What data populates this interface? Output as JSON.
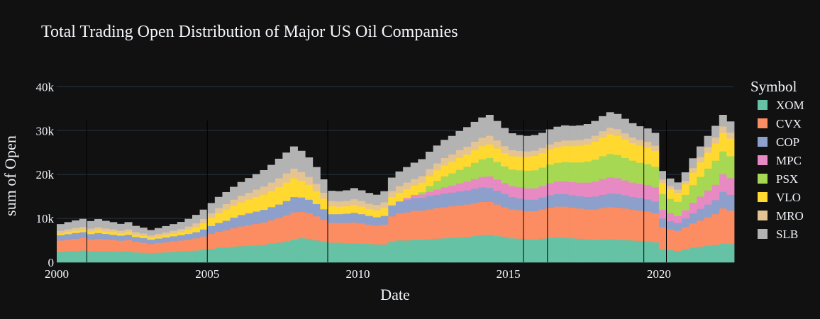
{
  "chart_data": {
    "type": "bar",
    "stacked": true,
    "title": "Total Trading Open Distribution of Major US Oil Companies",
    "xlabel": "Date",
    "ylabel": "sum of Open",
    "legend_title": "Symbol",
    "legend_position": "right",
    "grid": true,
    "xlim": [
      2000.0,
      2022.5
    ],
    "ylim": [
      0,
      42000
    ],
    "x_ticks": [
      2000,
      2005,
      2010,
      2015,
      2020
    ],
    "x_tick_labels": [
      "2000",
      "2005",
      "2010",
      "2015",
      "2020"
    ],
    "y_ticks": [
      0,
      10000,
      20000,
      30000,
      40000
    ],
    "y_tick_labels": [
      "0",
      "10k",
      "20k",
      "30k",
      "40k"
    ],
    "vertical_markers": [
      2001.0,
      2005.0,
      2009.0,
      2015.5,
      2016.3,
      2019.5,
      2020.25
    ],
    "x": [
      2000.125,
      2000.375,
      2000.625,
      2000.875,
      2001.125,
      2001.375,
      2001.625,
      2001.875,
      2002.125,
      2002.375,
      2002.625,
      2002.875,
      2003.125,
      2003.375,
      2003.625,
      2003.875,
      2004.125,
      2004.375,
      2004.625,
      2004.875,
      2005.125,
      2005.375,
      2005.625,
      2005.875,
      2006.125,
      2006.375,
      2006.625,
      2006.875,
      2007.125,
      2007.375,
      2007.625,
      2007.875,
      2008.125,
      2008.375,
      2008.625,
      2008.875,
      2009.125,
      2009.375,
      2009.625,
      2009.875,
      2010.125,
      2010.375,
      2010.625,
      2010.875,
      2011.125,
      2011.375,
      2011.625,
      2011.875,
      2012.125,
      2012.375,
      2012.625,
      2012.875,
      2013.125,
      2013.375,
      2013.625,
      2013.875,
      2014.125,
      2014.375,
      2014.625,
      2014.875,
      2015.125,
      2015.375,
      2015.625,
      2015.875,
      2016.125,
      2016.375,
      2016.625,
      2016.875,
      2017.125,
      2017.375,
      2017.625,
      2017.875,
      2018.125,
      2018.375,
      2018.625,
      2018.875,
      2019.125,
      2019.375,
      2019.625,
      2019.875,
      2020.125,
      2020.375,
      2020.625,
      2020.875,
      2021.125,
      2021.375,
      2021.625,
      2021.875,
      2022.125,
      2022.375
    ],
    "series": [
      {
        "name": "XOM",
        "color": "#66c2a5",
        "values": [
          2400,
          2500,
          2600,
          2700,
          2500,
          2600,
          2550,
          2500,
          2450,
          2500,
          2300,
          2200,
          2100,
          2200,
          2300,
          2400,
          2500,
          2600,
          2700,
          2900,
          3100,
          3300,
          3400,
          3600,
          3700,
          3800,
          3900,
          4000,
          4300,
          4500,
          4800,
          5200,
          5500,
          5400,
          5000,
          4700,
          4500,
          4500,
          4400,
          4300,
          4300,
          4200,
          4100,
          4100,
          4700,
          5000,
          5000,
          5200,
          5200,
          5300,
          5400,
          5500,
          5600,
          5700,
          5800,
          6000,
          6200,
          6300,
          6000,
          5800,
          5500,
          5400,
          5300,
          5200,
          5400,
          5600,
          5700,
          5600,
          5500,
          5400,
          5300,
          5200,
          5200,
          5300,
          5200,
          5100,
          5000,
          4900,
          4800,
          4600,
          3000,
          2800,
          2600,
          3000,
          3400,
          3600,
          3800,
          4000,
          4300,
          4200
        ]
      },
      {
        "name": "CVX",
        "color": "#fc8d62",
        "values": [
          2600,
          2700,
          2800,
          2900,
          2700,
          2800,
          2700,
          2600,
          2500,
          2600,
          2400,
          2300,
          2100,
          2200,
          2300,
          2400,
          2500,
          2600,
          2800,
          3000,
          3400,
          3700,
          3900,
          4200,
          4500,
          4700,
          4900,
          5100,
          5300,
          5600,
          5900,
          6200,
          6000,
          5800,
          5500,
          5000,
          4500,
          4500,
          4600,
          4800,
          4600,
          4400,
          4300,
          4500,
          5800,
          6200,
          6400,
          6600,
          6600,
          6800,
          7000,
          7100,
          7200,
          7300,
          7400,
          7500,
          7600,
          7500,
          7200,
          6800,
          6600,
          6500,
          6400,
          6500,
          6700,
          6900,
          7000,
          7100,
          7000,
          6900,
          6800,
          6900,
          7200,
          7300,
          7300,
          7200,
          7000,
          6900,
          6800,
          6600,
          5000,
          4700,
          4600,
          5000,
          5500,
          6000,
          6500,
          7000,
          8000,
          7600
        ]
      },
      {
        "name": "COP",
        "color": "#8da0cb",
        "values": [
          1200,
          1250,
          1300,
          1300,
          1250,
          1300,
          1250,
          1200,
          1150,
          1200,
          1100,
          1050,
          1000,
          1050,
          1100,
          1150,
          1200,
          1300,
          1400,
          1600,
          1800,
          2000,
          2200,
          2400,
          2600,
          2700,
          2800,
          2900,
          3000,
          3100,
          3300,
          3500,
          3300,
          3100,
          2800,
          2400,
          2000,
          2000,
          2100,
          2200,
          2100,
          2000,
          1900,
          2000,
          2500,
          2700,
          2800,
          2900,
          2900,
          3000,
          3000,
          3100,
          3100,
          3200,
          3200,
          3300,
          3300,
          3200,
          3100,
          3000,
          2800,
          2700,
          2600,
          2600,
          2700,
          2800,
          2900,
          2900,
          2800,
          2800,
          2800,
          2900,
          3000,
          3100,
          3100,
          3000,
          2900,
          2900,
          2800,
          2700,
          2000,
          1900,
          1800,
          2000,
          2300,
          2600,
          2900,
          3200,
          3800,
          3600
        ]
      },
      {
        "name": "MPC",
        "color": "#e78ac3",
        "values": [
          0,
          0,
          0,
          0,
          0,
          0,
          0,
          0,
          0,
          0,
          0,
          0,
          0,
          0,
          0,
          0,
          0,
          0,
          0,
          0,
          0,
          0,
          0,
          0,
          0,
          0,
          0,
          0,
          0,
          0,
          0,
          0,
          0,
          0,
          0,
          0,
          0,
          0,
          0,
          0,
          0,
          0,
          0,
          0,
          0,
          0,
          500,
          700,
          800,
          1000,
          1200,
          1400,
          1600,
          1800,
          2000,
          2200,
          2400,
          2600,
          2600,
          2500,
          2500,
          2500,
          2600,
          2600,
          2600,
          2700,
          2800,
          2900,
          3000,
          3100,
          3300,
          3400,
          3600,
          3700,
          3600,
          3400,
          3300,
          3200,
          3200,
          3200,
          2000,
          1800,
          1600,
          1900,
          2400,
          2800,
          3200,
          3500,
          4000,
          3800
        ]
      },
      {
        "name": "PSX",
        "color": "#a6d854",
        "values": [
          0,
          0,
          0,
          0,
          0,
          0,
          0,
          0,
          0,
          0,
          0,
          0,
          0,
          0,
          0,
          0,
          0,
          0,
          0,
          0,
          0,
          0,
          0,
          0,
          0,
          0,
          0,
          0,
          0,
          0,
          0,
          0,
          0,
          0,
          0,
          0,
          0,
          0,
          0,
          0,
          0,
          0,
          0,
          0,
          0,
          0,
          0,
          0,
          500,
          1300,
          2000,
          2500,
          2800,
          3100,
          3400,
          3700,
          4000,
          4200,
          4000,
          3800,
          3800,
          3900,
          4000,
          4100,
          4200,
          4300,
          4300,
          4400,
          4500,
          4600,
          4800,
          5000,
          5200,
          5300,
          5300,
          5100,
          5000,
          4800,
          4800,
          4700,
          3600,
          3300,
          3200,
          3500,
          4000,
          4500,
          5000,
          5500,
          5200,
          5000
        ]
      },
      {
        "name": "VLO",
        "color": "#ffd92f",
        "values": [
          400,
          450,
          500,
          500,
          600,
          650,
          600,
          600,
          550,
          600,
          500,
          500,
          450,
          500,
          550,
          600,
          700,
          900,
          1100,
          1400,
          1800,
          2200,
          2500,
          2700,
          2900,
          3100,
          3300,
          3500,
          3700,
          4000,
          4200,
          4300,
          3800,
          3400,
          3000,
          2400,
          1800,
          1700,
          1700,
          1800,
          1700,
          1600,
          1600,
          1800,
          1900,
          2000,
          2000,
          2100,
          2200,
          2300,
          2400,
          2500,
          2600,
          2700,
          2800,
          2900,
          3000,
          3100,
          3100,
          3000,
          3000,
          3100,
          3200,
          3300,
          3300,
          3400,
          3500,
          3600,
          3700,
          3800,
          3900,
          4100,
          4300,
          4500,
          4400,
          4200,
          4000,
          3900,
          3800,
          3600,
          2500,
          2200,
          2100,
          2400,
          2900,
          3300,
          3600,
          3900,
          4200,
          4000
        ]
      },
      {
        "name": "MRO",
        "color": "#e5c494",
        "values": [
          600,
          650,
          650,
          700,
          650,
          700,
          650,
          650,
          600,
          650,
          600,
          550,
          500,
          550,
          600,
          650,
          700,
          800,
          900,
          1000,
          1100,
          1200,
          1300,
          1400,
          1500,
          1600,
          1700,
          1800,
          1900,
          2000,
          2100,
          2200,
          2000,
          1800,
          1600,
          1400,
          1200,
          1200,
          1200,
          1300,
          1300,
          1200,
          1200,
          1300,
          1400,
          1500,
          1500,
          1500,
          1500,
          1600,
          1600,
          1700,
          1700,
          1800,
          1800,
          1900,
          1900,
          2000,
          1800,
          1600,
          1400,
          1300,
          1200,
          1200,
          1200,
          1200,
          1300,
          1300,
          1300,
          1300,
          1300,
          1400,
          1400,
          1500,
          1500,
          1400,
          1300,
          1300,
          1300,
          1200,
          800,
          700,
          700,
          800,
          1000,
          1200,
          1300,
          1400,
          1500,
          1400
        ]
      },
      {
        "name": "SLB",
        "color": "#b3b3b3",
        "values": [
          1500,
          1600,
          1700,
          1800,
          1700,
          1800,
          1700,
          1600,
          1500,
          1600,
          1400,
          1300,
          1200,
          1300,
          1400,
          1500,
          1600,
          1700,
          1900,
          2100,
          2300,
          2500,
          2700,
          2900,
          3100,
          3300,
          3500,
          3700,
          4000,
          4400,
          4700,
          5000,
          4800,
          4400,
          3800,
          3000,
          2300,
          2300,
          2400,
          2500,
          2400,
          2400,
          2300,
          2500,
          3000,
          3300,
          3500,
          3700,
          3800,
          3900,
          4000,
          4100,
          4200,
          4300,
          4400,
          4500,
          4600,
          4700,
          4400,
          4100,
          3800,
          3600,
          3500,
          3500,
          3400,
          3400,
          3400,
          3400,
          3300,
          3300,
          3300,
          3300,
          3400,
          3500,
          3400,
          3300,
          3200,
          3100,
          3000,
          2900,
          1900,
          1700,
          1600,
          1900,
          2200,
          2400,
          2500,
          2600,
          2600,
          2500
        ]
      }
    ]
  }
}
